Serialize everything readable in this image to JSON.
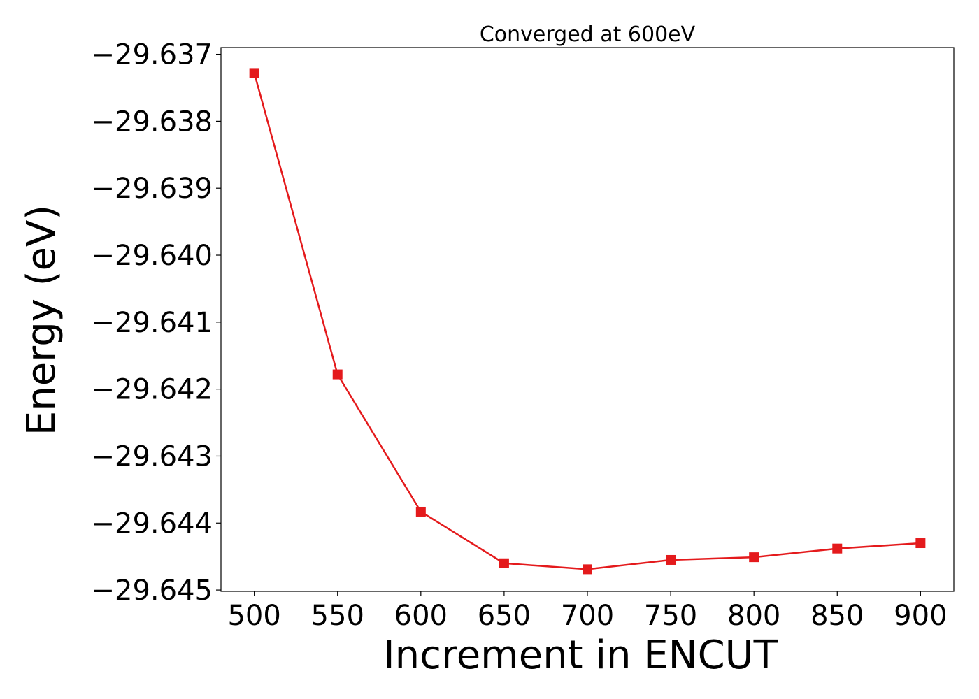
{
  "chart_data": {
    "type": "line",
    "title": "Converged at 600eV",
    "xlabel": "Increment in ENCUT",
    "ylabel": "Energy (eV)",
    "x": [
      500,
      550,
      600,
      650,
      700,
      750,
      800,
      850,
      900
    ],
    "series": [
      {
        "values": [
          -29.63728,
          -29.64178,
          -29.64383,
          -29.6446,
          -29.64469,
          -29.64455,
          -29.64451,
          -29.64438,
          -29.6443
        ],
        "color": "#e41a1c",
        "marker": "square"
      }
    ],
    "xlim": [
      480,
      920
    ],
    "ylim": [
      -29.64502,
      -29.6369
    ],
    "xticks": [
      500,
      550,
      600,
      650,
      700,
      750,
      800,
      850,
      900
    ],
    "xtick_labels": [
      "500",
      "550",
      "600",
      "650",
      "700",
      "750",
      "800",
      "850",
      "900"
    ],
    "yticks": [
      -29.637,
      -29.638,
      -29.639,
      -29.64,
      -29.641,
      -29.642,
      -29.643,
      -29.644,
      -29.645
    ],
    "ytick_labels": [
      "−29.637",
      "−29.638",
      "−29.639",
      "−29.640",
      "−29.641",
      "−29.642",
      "−29.643",
      "−29.644",
      "−29.645"
    ],
    "grid": false,
    "legend": "none"
  }
}
